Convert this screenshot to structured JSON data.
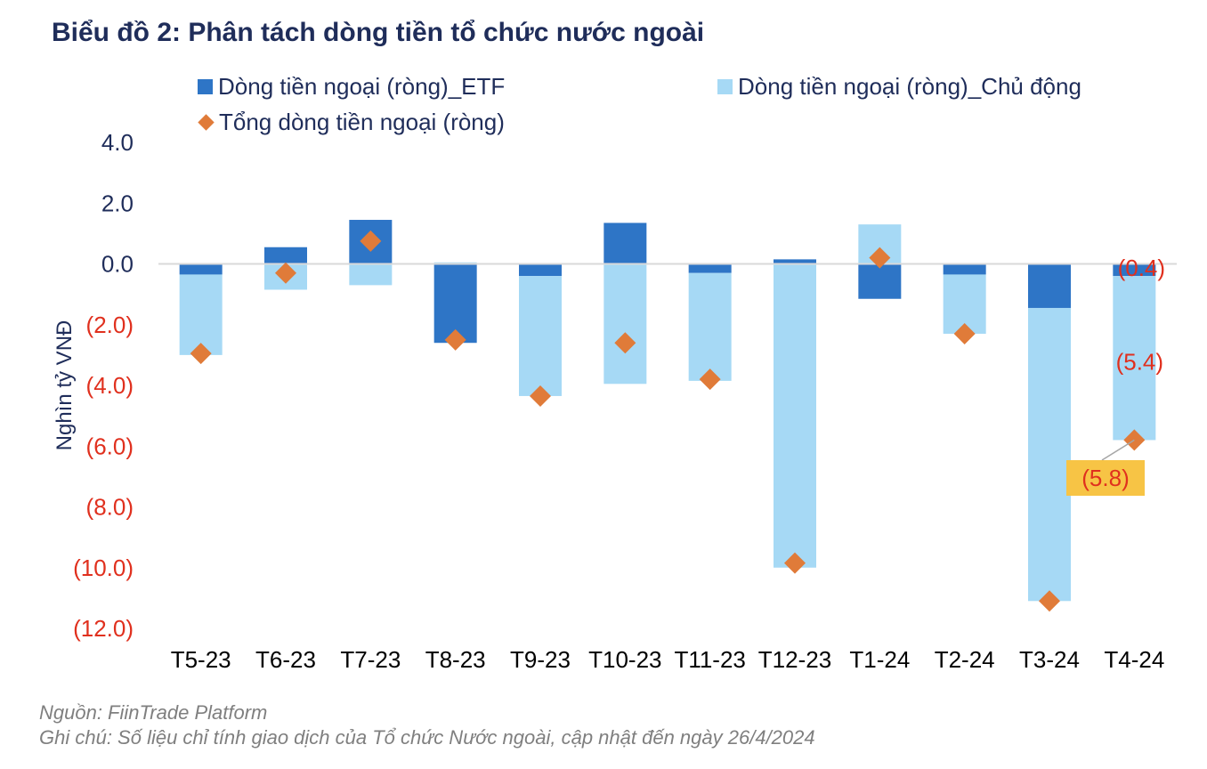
{
  "chart_data": {
    "type": "bar",
    "title": "Biểu đồ 2: Phân tách dòng tiền tổ chức nước ngoài",
    "ylabel": "Nghìn tỷ VNĐ",
    "ylim": [
      -12,
      4
    ],
    "yticks": [
      4,
      2,
      0,
      -2,
      -4,
      -6,
      -8,
      -10,
      -12
    ],
    "ytick_labels": [
      "4.0",
      "2.0",
      "0.0",
      "(2.0)",
      "(4.0)",
      "(6.0)",
      "(8.0)",
      "(10.0)",
      "(12.0)"
    ],
    "categories": [
      "T5-23",
      "T6-23",
      "T7-23",
      "T8-23",
      "T9-23",
      "T10-23",
      "T11-23",
      "T12-23",
      "T1-24",
      "T2-24",
      "T3-24",
      "T4-24"
    ],
    "stacked": true,
    "series": [
      {
        "name": "Dòng tiền ngoại (ròng)_ETF",
        "kind": "bar",
        "color": "#2E75C6",
        "values": [
          -0.35,
          0.55,
          1.45,
          -2.6,
          -0.4,
          1.35,
          -0.3,
          0.15,
          -1.15,
          -0.35,
          -1.45,
          -0.4
        ]
      },
      {
        "name": "Dòng tiền ngoại (ròng)_Chủ động",
        "kind": "bar",
        "color": "#A6D9F5",
        "values": [
          -2.65,
          -0.85,
          -0.7,
          0.05,
          -3.95,
          -3.95,
          -3.55,
          -10.0,
          1.3,
          -1.95,
          -9.65,
          -5.4
        ]
      },
      {
        "name": "Tổng dòng tiền ngoại (ròng)",
        "kind": "marker",
        "color": "#E07B39",
        "values": [
          -2.95,
          -0.3,
          0.75,
          -2.5,
          -4.35,
          -2.6,
          -3.8,
          -9.85,
          0.2,
          -2.3,
          -11.1,
          -5.8
        ]
      }
    ],
    "data_labels": [
      {
        "category": "T4-24",
        "series": "Dòng tiền ngoại (ròng)_ETF",
        "text": "(0.4)"
      },
      {
        "category": "T4-24",
        "series": "Dòng tiền ngoại (ròng)_Chủ động",
        "text": "(5.4)"
      },
      {
        "category": "T4-24",
        "series": "Tổng dòng tiền ngoại (ròng)",
        "text": "(5.8)"
      }
    ],
    "legend_position": "top",
    "grid": false
  },
  "colors": {
    "axis_text": "#1F2D5A",
    "negative_text": "#E0301E",
    "callout_fill": "#F7C445",
    "zero_line": "#D9D9D9"
  },
  "footer": {
    "source": "Nguồn: FiinTrade Platform",
    "note": "Ghi chú: Số liệu chỉ tính giao dịch của Tổ chức Nước ngoài, cập nhật đến ngày 26/4/2024"
  }
}
